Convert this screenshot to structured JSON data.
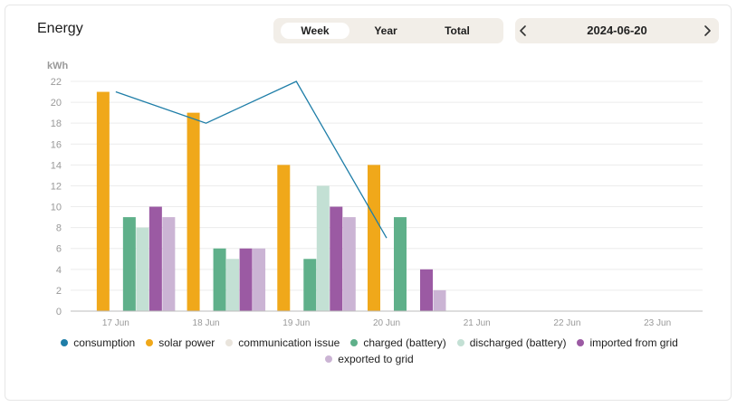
{
  "header": {
    "title": "Energy",
    "tabs": [
      {
        "label": "Week",
        "active": true
      },
      {
        "label": "Year",
        "active": false
      },
      {
        "label": "Total",
        "active": false
      }
    ],
    "date": "2024-06-20",
    "prev_icon": "chevron-left-icon",
    "next_icon": "chevron-right-icon"
  },
  "chart_data": {
    "type": "bar",
    "ylabel": "kWh",
    "ylim": [
      0,
      22
    ],
    "yticks": [
      0,
      2,
      4,
      6,
      8,
      10,
      12,
      14,
      16,
      18,
      20,
      22
    ],
    "grid": true,
    "categories": [
      "17 Jun",
      "18 Jun",
      "19 Jun",
      "20 Jun",
      "21 Jun",
      "22 Jun",
      "23 Jun"
    ],
    "series": [
      {
        "name": "consumption",
        "kind": "line",
        "color": "#1f7ea8",
        "values": [
          21,
          18,
          22,
          7,
          null,
          null,
          null
        ]
      },
      {
        "name": "solar power",
        "kind": "bar",
        "color": "#f0a81a",
        "values": [
          21,
          19,
          14,
          14,
          null,
          null,
          null
        ]
      },
      {
        "name": "communication issue",
        "kind": "bar",
        "color": "#e9e4dc",
        "values": [
          null,
          null,
          null,
          null,
          null,
          null,
          null
        ]
      },
      {
        "name": "charged (battery)",
        "kind": "bar",
        "color": "#5fb08a",
        "values": [
          9,
          6,
          5,
          9,
          null,
          null,
          null
        ]
      },
      {
        "name": "discharged (battery)",
        "kind": "bar",
        "color": "#c3e0d4",
        "values": [
          8,
          5,
          12,
          null,
          null,
          null,
          null
        ]
      },
      {
        "name": "imported from grid",
        "kind": "bar",
        "color": "#9b5aa3",
        "values": [
          10,
          6,
          10,
          4,
          null,
          null,
          null
        ]
      },
      {
        "name": "exported to grid",
        "kind": "bar",
        "color": "#cbb4d4",
        "values": [
          9,
          6,
          9,
          2,
          null,
          null,
          null
        ]
      }
    ],
    "legend_position": "bottom"
  }
}
